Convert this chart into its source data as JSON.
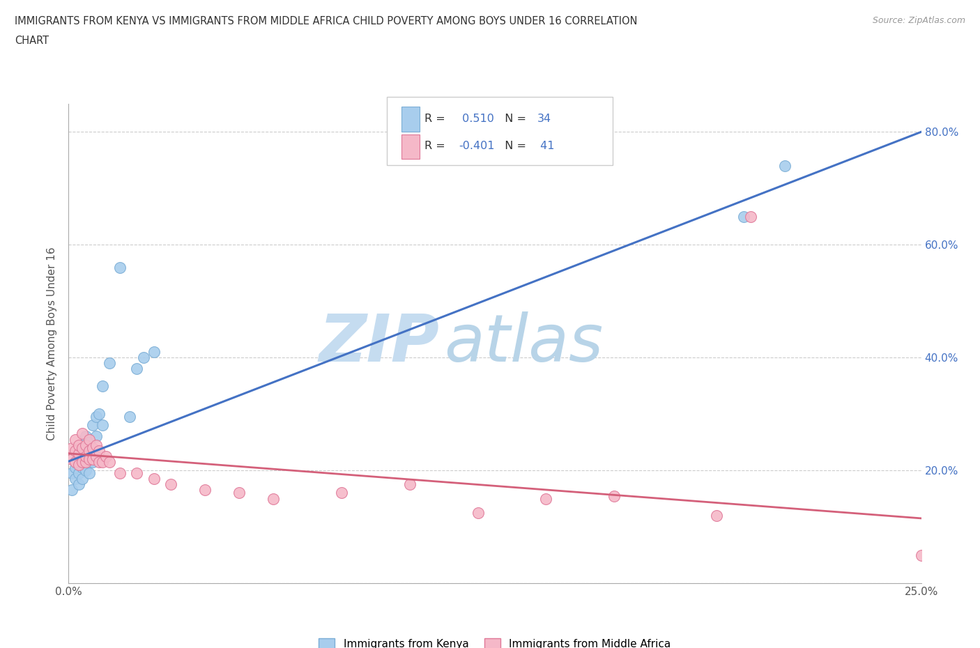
{
  "title_line1": "IMMIGRANTS FROM KENYA VS IMMIGRANTS FROM MIDDLE AFRICA CHILD POVERTY AMONG BOYS UNDER 16 CORRELATION",
  "title_line2": "CHART",
  "source": "Source: ZipAtlas.com",
  "ylabel": "Child Poverty Among Boys Under 16",
  "xlim": [
    0.0,
    0.25
  ],
  "ylim": [
    0.0,
    0.85
  ],
  "kenya_color": "#A8CDED",
  "kenya_edge": "#7BAED6",
  "middle_africa_color": "#F5B8C8",
  "middle_africa_edge": "#E07898",
  "trend_kenya_color": "#4472C4",
  "trend_middle_africa_color": "#D4607A",
  "watermark_main_color": "#C8E0F0",
  "watermark_sub_color": "#B8D0E8",
  "R_kenya": 0.51,
  "N_kenya": 34,
  "R_middle_africa": -0.401,
  "N_middle_africa": 41,
  "kenya_x": [
    0.001,
    0.001,
    0.002,
    0.002,
    0.002,
    0.003,
    0.003,
    0.003,
    0.003,
    0.004,
    0.004,
    0.004,
    0.005,
    0.005,
    0.005,
    0.005,
    0.006,
    0.006,
    0.006,
    0.007,
    0.007,
    0.008,
    0.008,
    0.009,
    0.01,
    0.01,
    0.012,
    0.015,
    0.018,
    0.02,
    0.022,
    0.025,
    0.198,
    0.21
  ],
  "kenya_y": [
    0.165,
    0.195,
    0.185,
    0.205,
    0.215,
    0.175,
    0.195,
    0.215,
    0.225,
    0.185,
    0.205,
    0.225,
    0.2,
    0.22,
    0.24,
    0.26,
    0.195,
    0.215,
    0.25,
    0.215,
    0.28,
    0.295,
    0.26,
    0.3,
    0.28,
    0.35,
    0.39,
    0.56,
    0.295,
    0.38,
    0.4,
    0.41,
    0.65,
    0.74
  ],
  "middle_africa_x": [
    0.001,
    0.001,
    0.002,
    0.002,
    0.002,
    0.003,
    0.003,
    0.003,
    0.004,
    0.004,
    0.004,
    0.005,
    0.005,
    0.005,
    0.006,
    0.006,
    0.006,
    0.007,
    0.007,
    0.008,
    0.008,
    0.009,
    0.009,
    0.01,
    0.011,
    0.012,
    0.015,
    0.02,
    0.025,
    0.03,
    0.04,
    0.05,
    0.06,
    0.08,
    0.1,
    0.12,
    0.14,
    0.16,
    0.19,
    0.2,
    0.25
  ],
  "middle_africa_y": [
    0.22,
    0.24,
    0.215,
    0.235,
    0.255,
    0.21,
    0.23,
    0.245,
    0.215,
    0.24,
    0.265,
    0.215,
    0.225,
    0.245,
    0.22,
    0.235,
    0.255,
    0.22,
    0.24,
    0.225,
    0.245,
    0.215,
    0.235,
    0.215,
    0.225,
    0.215,
    0.195,
    0.195,
    0.185,
    0.175,
    0.165,
    0.16,
    0.15,
    0.16,
    0.175,
    0.125,
    0.15,
    0.155,
    0.12,
    0.65,
    0.05
  ],
  "trend_kenya_x0": 0.0,
  "trend_kenya_y0": 0.216,
  "trend_kenya_x1": 0.25,
  "trend_kenya_y1": 0.8,
  "trend_ma_x0": 0.0,
  "trend_ma_y0": 0.23,
  "trend_ma_x1": 0.25,
  "trend_ma_y1": 0.115
}
